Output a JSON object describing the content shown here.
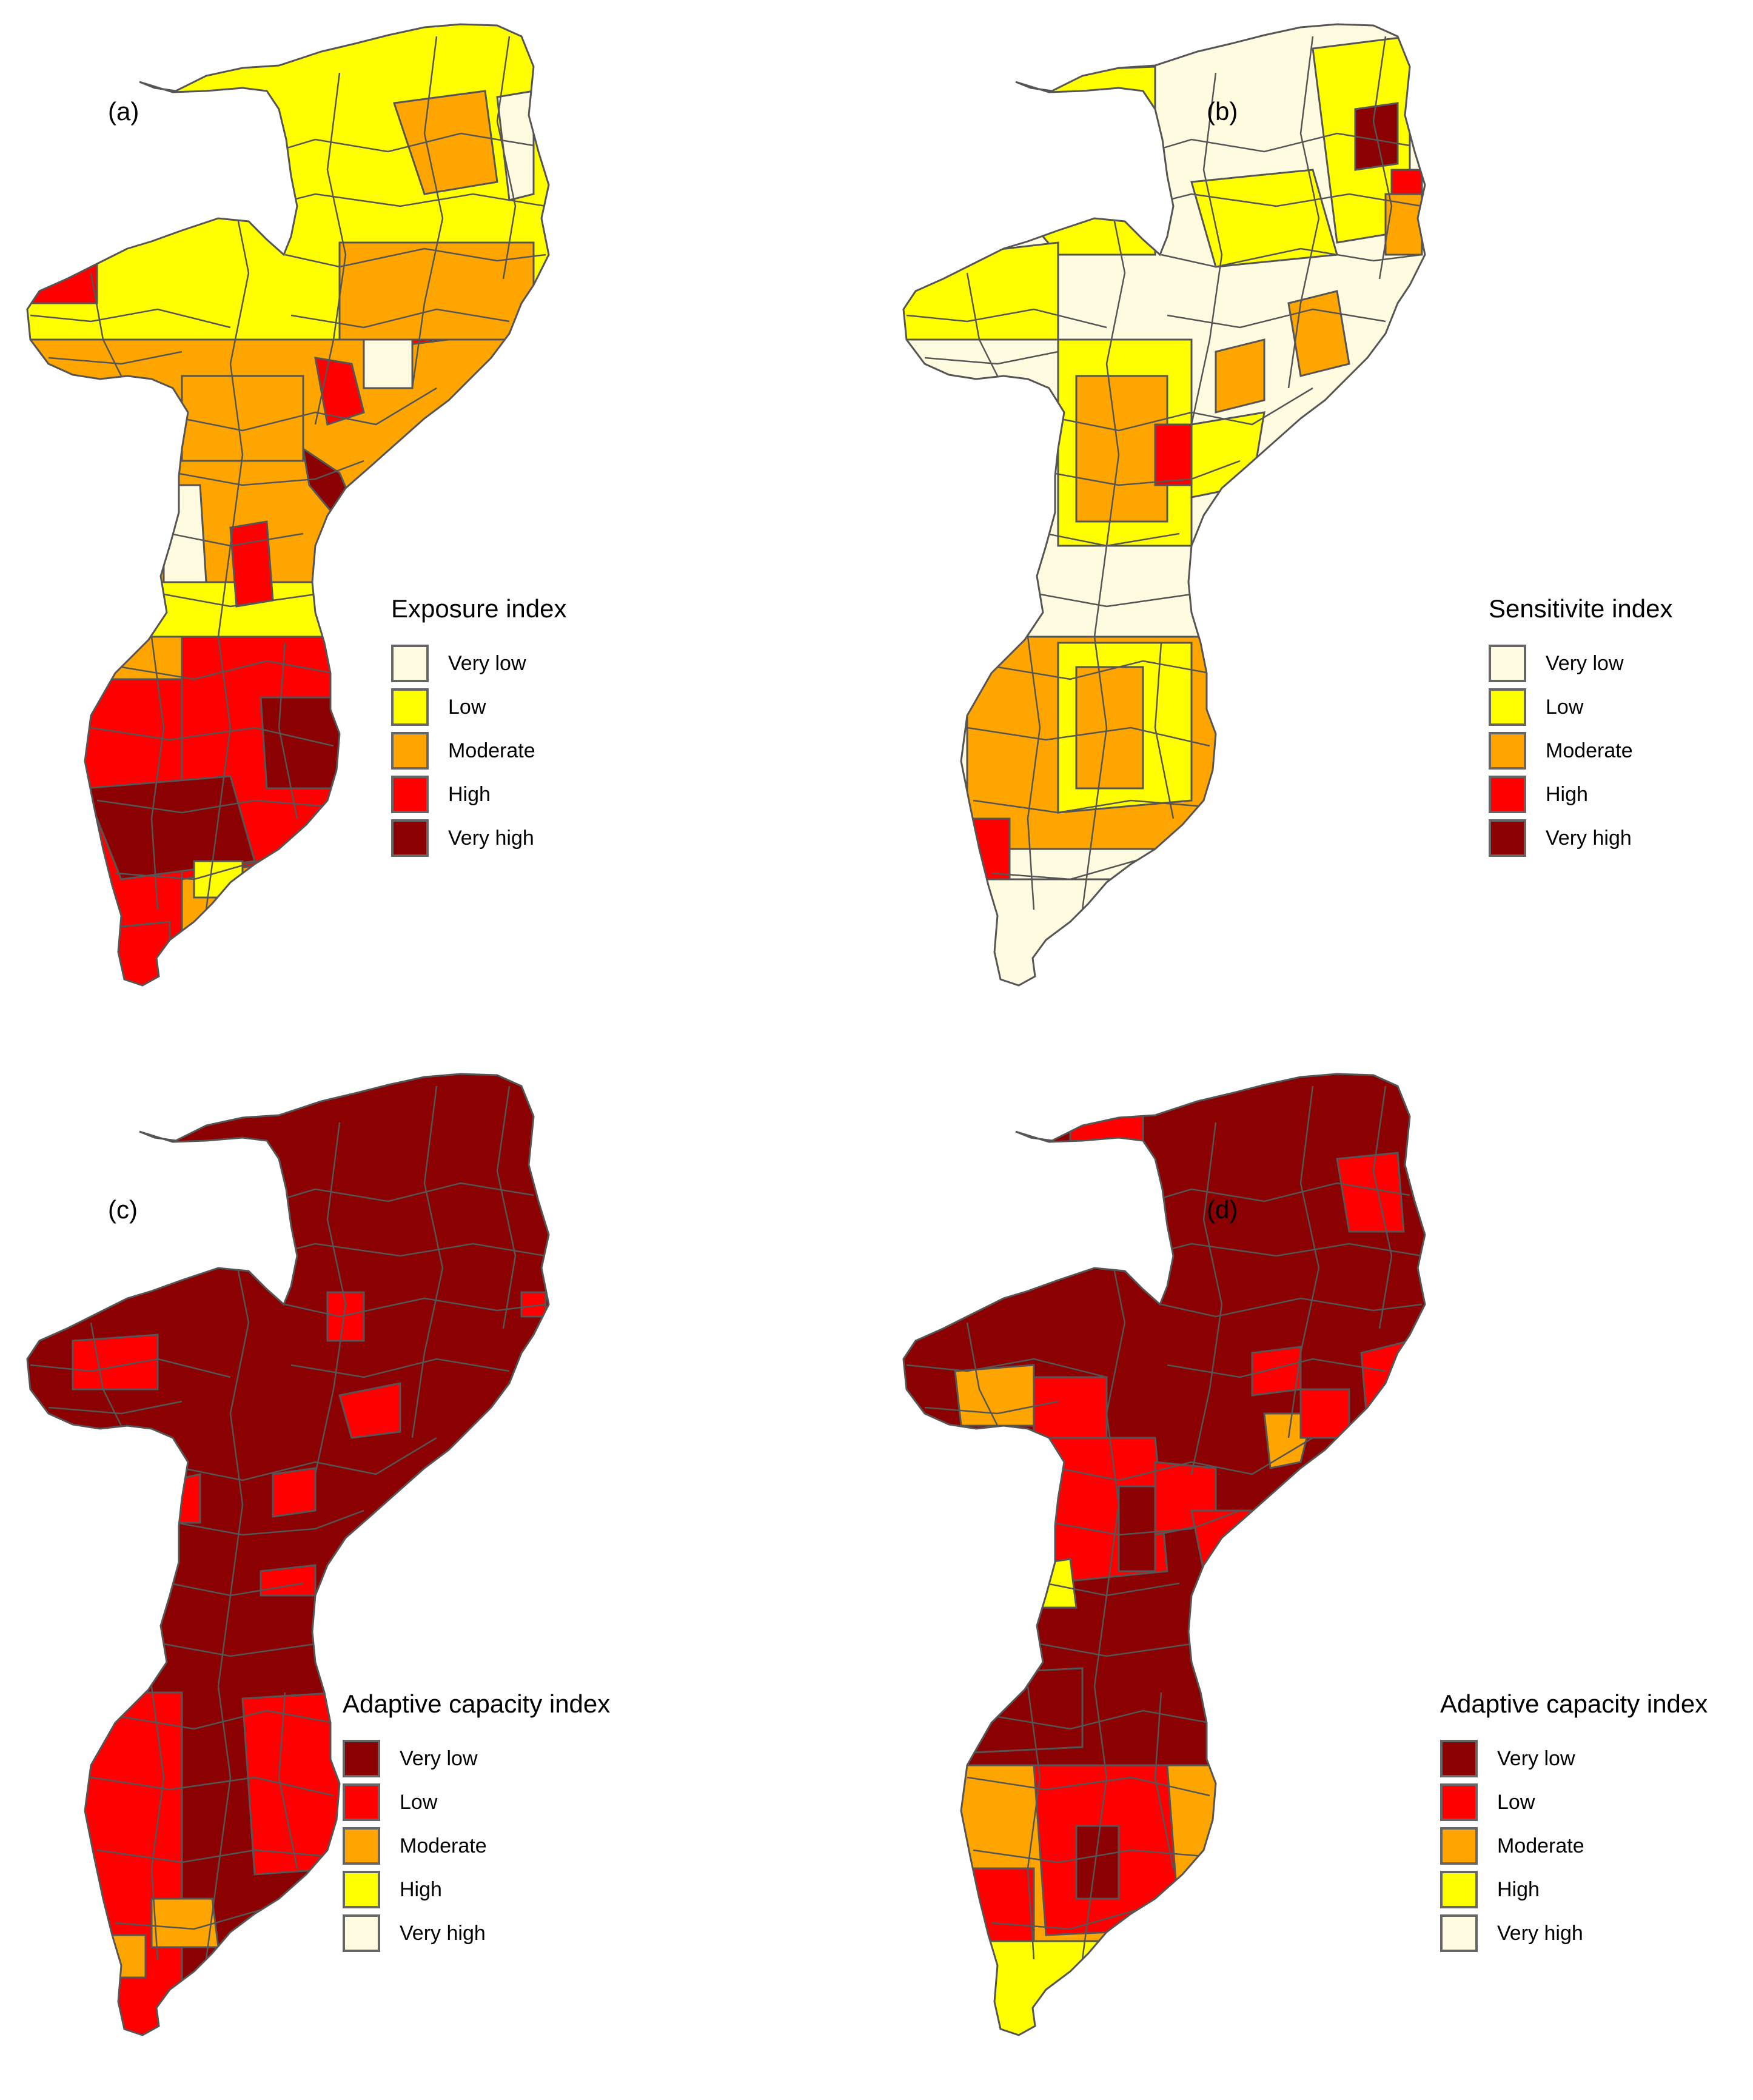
{
  "panels": [
    {
      "label": "(a)",
      "legend_title": "Exposure index",
      "items": [
        {
          "label": "Very low",
          "color": "#FFFBE0"
        },
        {
          "label": "Low",
          "color": "#FFFF00"
        },
        {
          "label": "Moderate",
          "color": "#FFA500"
        },
        {
          "label": "High",
          "color": "#FF0000"
        },
        {
          "label": "Very high",
          "color": "#8B0000"
        }
      ]
    },
    {
      "label": "(b)",
      "legend_title": "Sensitivite index",
      "items": [
        {
          "label": "Very low",
          "color": "#FFFBE0"
        },
        {
          "label": "Low",
          "color": "#FFFF00"
        },
        {
          "label": "Moderate",
          "color": "#FFA500"
        },
        {
          "label": "High",
          "color": "#FF0000"
        },
        {
          "label": "Very high",
          "color": "#8B0000"
        }
      ]
    },
    {
      "label": "(c)",
      "legend_title": "Adaptive capacity index",
      "items": [
        {
          "label": "Very low",
          "color": "#8B0000"
        },
        {
          "label": "Low",
          "color": "#FF0000"
        },
        {
          "label": "Moderate",
          "color": "#FFA500"
        },
        {
          "label": "High",
          "color": "#FFFF00"
        },
        {
          "label": "Very high",
          "color": "#FFFBE0"
        }
      ]
    },
    {
      "label": "(d)",
      "legend_title": "Adaptive capacity index",
      "items": [
        {
          "label": "Very low",
          "color": "#8B0000"
        },
        {
          "label": "Low",
          "color": "#FF0000"
        },
        {
          "label": "Moderate",
          "color": "#FFA500"
        },
        {
          "label": "High",
          "color": "#FFFF00"
        },
        {
          "label": "Very high",
          "color": "#FFFBE0"
        }
      ]
    }
  ]
}
